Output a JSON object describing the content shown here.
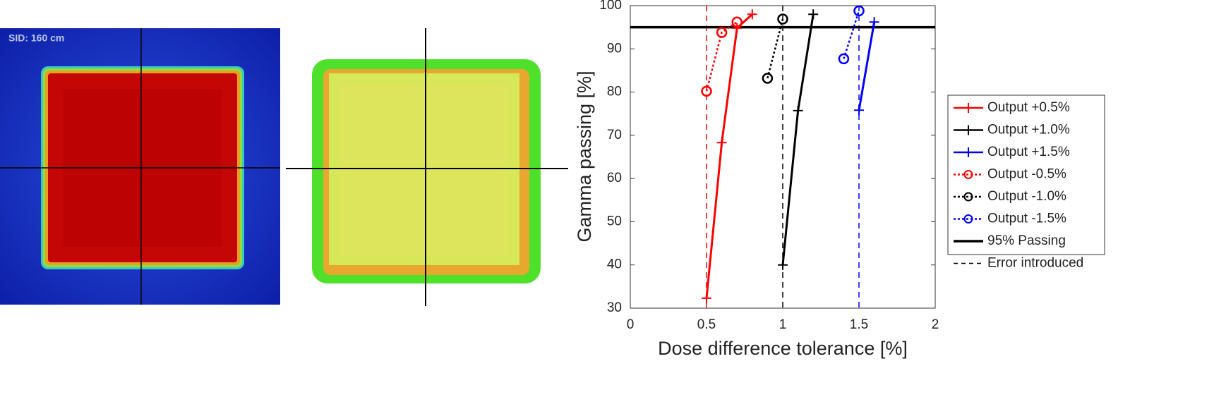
{
  "image_label": "SID: 160 cm",
  "chart_data": {
    "type": "line",
    "xlabel": "Dose difference tolerance [%]",
    "ylabel": "Gamma passing [%]",
    "xlim": [
      0,
      2
    ],
    "xticks": [
      0,
      0.5,
      1,
      1.5,
      2
    ],
    "ylim": [
      30,
      100
    ],
    "yticks": [
      30,
      40,
      50,
      60,
      70,
      80,
      90,
      100
    ],
    "series": [
      {
        "name": "Output +0.5%",
        "color": "#ff0000",
        "marker": "+",
        "linestyle": "solid",
        "x": [
          0.5,
          0.6,
          0.7,
          0.8
        ],
        "values": [
          32.3,
          68.3,
          94.8,
          98
        ]
      },
      {
        "name": "Output +1.0%",
        "color": "#000000",
        "marker": "+",
        "linestyle": "solid",
        "x": [
          1.0,
          1.1,
          1.2
        ],
        "values": [
          40,
          75.7,
          98
        ]
      },
      {
        "name": "Output +1.5%",
        "color": "#0000ff",
        "marker": "+",
        "linestyle": "solid",
        "x": [
          1.5,
          1.6
        ],
        "values": [
          75.8,
          96.2
        ]
      },
      {
        "name": "Output -0.5%",
        "color": "#ff0000",
        "marker": "o",
        "linestyle": "dotted",
        "x": [
          0.5,
          0.6,
          0.7
        ],
        "values": [
          80.2,
          93.8,
          96.2
        ]
      },
      {
        "name": "Output -1.0%",
        "color": "#000000",
        "marker": "o",
        "linestyle": "dotted",
        "x": [
          0.9,
          1.0
        ],
        "values": [
          83.2,
          96.9
        ]
      },
      {
        "name": "Output -1.5%",
        "color": "#0000ff",
        "marker": "o",
        "linestyle": "dotted",
        "x": [
          1.4,
          1.5
        ],
        "values": [
          87.7,
          98.8
        ]
      }
    ],
    "hline": {
      "name": "95% Passing",
      "value": 95,
      "color": "#000000"
    },
    "vlines": {
      "name": "Error introduced",
      "values": [
        0.5,
        1.0,
        1.5
      ],
      "colors": [
        "#ff0000",
        "#000000",
        "#0000ff"
      ]
    }
  }
}
